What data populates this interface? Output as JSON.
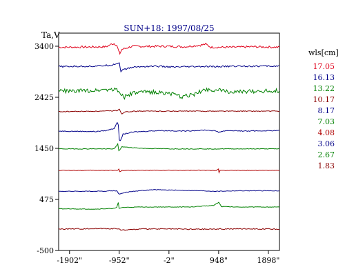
{
  "chart_data": {
    "type": "line",
    "title": "SUN+18: 1997/08/25",
    "ylabel": "Ta,V",
    "xlabel": "",
    "legend_title": "wls[cm]",
    "legend_placement": "right",
    "grid": false,
    "xlim": [
      -2110,
      2110
    ],
    "ylim": [
      -500,
      3650
    ],
    "x_ticks": [
      {
        "value": -1902,
        "label": "-1902\""
      },
      {
        "value": -952,
        "label": "-952\""
      },
      {
        "value": -2,
        "label": "-2\""
      },
      {
        "value": 948,
        "label": "948\""
      },
      {
        "value": 1898,
        "label": "1898\""
      }
    ],
    "y_ticks": [
      {
        "value": 3400,
        "label": "3400"
      },
      {
        "value": 2425,
        "label": "2425"
      },
      {
        "value": 1450,
        "label": "1450"
      },
      {
        "value": 475,
        "label": "475"
      },
      {
        "value": -500,
        "label": "-500"
      }
    ],
    "series": [
      {
        "name": "17.05",
        "color": "#e0001a",
        "points": [
          [
            -2110,
            3380
          ],
          [
            -1500,
            3385
          ],
          [
            -1200,
            3390
          ],
          [
            -1100,
            3440
          ],
          [
            -1050,
            3450
          ],
          [
            -1000,
            3420
          ],
          [
            -960,
            3300
          ],
          [
            -940,
            3260
          ],
          [
            -900,
            3340
          ],
          [
            -700,
            3400
          ],
          [
            -400,
            3395
          ],
          [
            -100,
            3400
          ],
          [
            300,
            3390
          ],
          [
            600,
            3420
          ],
          [
            700,
            3440
          ],
          [
            800,
            3380
          ],
          [
            1200,
            3380
          ],
          [
            1600,
            3390
          ],
          [
            2110,
            3380
          ]
        ]
      },
      {
        "name": "16.13",
        "color": "#000088",
        "points": [
          [
            -2110,
            3010
          ],
          [
            -1400,
            3020
          ],
          [
            -1100,
            3040
          ],
          [
            -1000,
            3070
          ],
          [
            -950,
            3080
          ],
          [
            -920,
            2920
          ],
          [
            -880,
            2950
          ],
          [
            -700,
            3000
          ],
          [
            -300,
            3020
          ],
          [
            100,
            3000
          ],
          [
            500,
            3010
          ],
          [
            900,
            3010
          ],
          [
            1300,
            3020
          ],
          [
            2110,
            3020
          ]
        ]
      },
      {
        "name": "13.22",
        "color": "#008000",
        "points": [
          [
            -2110,
            2550
          ],
          [
            -1800,
            2540
          ],
          [
            -1400,
            2560
          ],
          [
            -1200,
            2580
          ],
          [
            -1000,
            2570
          ],
          [
            -850,
            2430
          ],
          [
            -700,
            2500
          ],
          [
            -400,
            2530
          ],
          [
            0,
            2500
          ],
          [
            250,
            2430
          ],
          [
            500,
            2490
          ],
          [
            700,
            2580
          ],
          [
            900,
            2560
          ],
          [
            1300,
            2520
          ],
          [
            1600,
            2540
          ],
          [
            2110,
            2550
          ]
        ]
      },
      {
        "name": "10.17",
        "color": "#8b0000",
        "points": [
          [
            -2110,
            2150
          ],
          [
            -1200,
            2160
          ],
          [
            -1000,
            2170
          ],
          [
            -950,
            2200
          ],
          [
            -900,
            2100
          ],
          [
            -850,
            2150
          ],
          [
            -600,
            2160
          ],
          [
            0,
            2160
          ],
          [
            600,
            2160
          ],
          [
            1200,
            2160
          ],
          [
            2110,
            2160
          ]
        ]
      },
      {
        "name": "8.17",
        "color": "#000088",
        "points": [
          [
            -2110,
            1780
          ],
          [
            -1400,
            1770
          ],
          [
            -1200,
            1790
          ],
          [
            -1050,
            1830
          ],
          [
            -990,
            1950
          ],
          [
            -970,
            1900
          ],
          [
            -950,
            1620
          ],
          [
            -930,
            1590
          ],
          [
            -880,
            1720
          ],
          [
            -700,
            1760
          ],
          [
            -200,
            1790
          ],
          [
            300,
            1780
          ],
          [
            700,
            1800
          ],
          [
            900,
            1780
          ],
          [
            950,
            1760
          ],
          [
            1100,
            1790
          ],
          [
            1500,
            1780
          ],
          [
            2110,
            1790
          ]
        ]
      },
      {
        "name": "7.03",
        "color": "#008000",
        "points": [
          [
            -2110,
            1440
          ],
          [
            -1300,
            1440
          ],
          [
            -1050,
            1440
          ],
          [
            -1000,
            1500
          ],
          [
            -980,
            1540
          ],
          [
            -960,
            1400
          ],
          [
            -900,
            1480
          ],
          [
            -800,
            1470
          ],
          [
            -500,
            1450
          ],
          [
            0,
            1440
          ],
          [
            500,
            1440
          ],
          [
            1000,
            1440
          ],
          [
            1500,
            1440
          ],
          [
            2110,
            1440
          ]
        ]
      },
      {
        "name": "4.08",
        "color": "#b00000",
        "points": [
          [
            -2110,
            1030
          ],
          [
            -1200,
            1030
          ],
          [
            -980,
            1030
          ],
          [
            -960,
            1060
          ],
          [
            -940,
            1000
          ],
          [
            -900,
            1030
          ],
          [
            -300,
            1030
          ],
          [
            300,
            1030
          ],
          [
            900,
            1030
          ],
          [
            945,
            1060
          ],
          [
            955,
            980
          ],
          [
            975,
            1030
          ],
          [
            1500,
            1030
          ],
          [
            2110,
            1030
          ]
        ]
      },
      {
        "name": "3.06",
        "color": "#000088",
        "points": [
          [
            -2110,
            630
          ],
          [
            -1300,
            630
          ],
          [
            -1100,
            640
          ],
          [
            -1000,
            640
          ],
          [
            -950,
            570
          ],
          [
            -880,
            600
          ],
          [
            -700,
            630
          ],
          [
            -300,
            660
          ],
          [
            200,
            650
          ],
          [
            600,
            640
          ],
          [
            900,
            630
          ],
          [
            1300,
            640
          ],
          [
            2110,
            640
          ]
        ]
      },
      {
        "name": "2.67",
        "color": "#008000",
        "points": [
          [
            -2110,
            295
          ],
          [
            -1400,
            290
          ],
          [
            -1100,
            300
          ],
          [
            -1000,
            320
          ],
          [
            -970,
            420
          ],
          [
            -955,
            300
          ],
          [
            -900,
            320
          ],
          [
            -500,
            330
          ],
          [
            0,
            330
          ],
          [
            400,
            330
          ],
          [
            850,
            360
          ],
          [
            950,
            420
          ],
          [
            1000,
            340
          ],
          [
            1300,
            330
          ],
          [
            1700,
            330
          ],
          [
            2110,
            330
          ]
        ]
      },
      {
        "name": "1.83",
        "color": "#8b0000",
        "points": [
          [
            -2110,
            -90
          ],
          [
            -1600,
            -85
          ],
          [
            -1200,
            -80
          ],
          [
            -1000,
            -85
          ],
          [
            -900,
            -110
          ],
          [
            -500,
            -90
          ],
          [
            0,
            -90
          ],
          [
            500,
            -95
          ],
          [
            1000,
            -90
          ],
          [
            1500,
            -85
          ],
          [
            2110,
            -95
          ]
        ]
      }
    ]
  }
}
